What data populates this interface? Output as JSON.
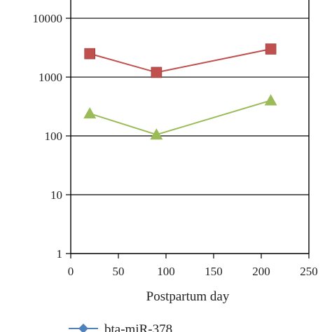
{
  "chart_data": {
    "type": "line",
    "xlabel": "Postpartum day",
    "ylabel": "",
    "x_scale": "linear",
    "y_scale": "log",
    "xlim": [
      0,
      250
    ],
    "ylim": [
      1,
      30000
    ],
    "xticks": [
      0,
      50,
      100,
      150,
      200,
      250
    ],
    "yticks": [
      1,
      10,
      100,
      1000,
      10000
    ],
    "xtick_labels": [
      "0",
      "50",
      "100",
      "150",
      "200",
      "250"
    ],
    "ytick_labels": [
      "1",
      "10",
      "100",
      "1000",
      "10000"
    ],
    "grid": "horizontal",
    "legend_placement": "bottom",
    "series": [
      {
        "name": "bta-miR-378",
        "color": "#4f81bd",
        "marker": "diamond",
        "x": [],
        "y": [],
        "legend_visible": true
      },
      {
        "name": "",
        "color": "#c0504d",
        "marker": "square",
        "x": [
          20,
          90,
          210
        ],
        "y": [
          2500,
          1200,
          3000
        ],
        "legend_visible": false
      },
      {
        "name": "",
        "color": "#9bbb59",
        "marker": "triangle",
        "x": [
          20,
          90,
          210
        ],
        "y": [
          240,
          105,
          400
        ],
        "legend_visible": false
      }
    ]
  }
}
